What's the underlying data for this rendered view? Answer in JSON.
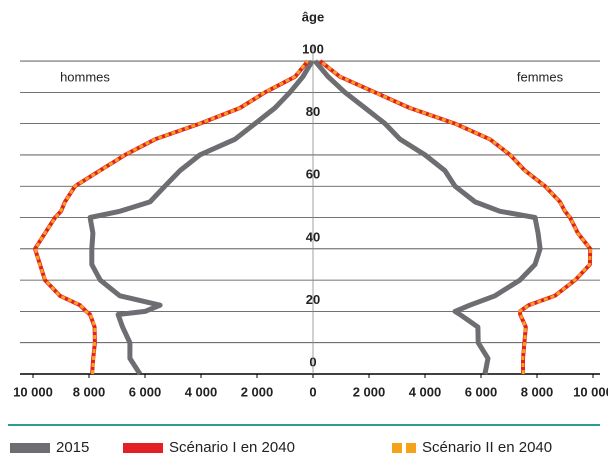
{
  "chart_data": {
    "type": "pyramid",
    "y_label": "âge",
    "annotations": [
      "hommes",
      "femmes"
    ],
    "ages": [
      0,
      5,
      10,
      15,
      19,
      20,
      22,
      25,
      30,
      35,
      40,
      45,
      50,
      52,
      55,
      60,
      65,
      70,
      75,
      80,
      85,
      90,
      95,
      100
    ],
    "series": [
      {
        "name": "2015",
        "color": "#6d6e71",
        "dash": false,
        "men": [
          6180,
          6540,
          6540,
          6800,
          6960,
          6000,
          5460,
          6900,
          7600,
          7900,
          7900,
          7860,
          7960,
          6900,
          5820,
          5290,
          4750,
          4040,
          2790,
          2070,
          1360,
          820,
          360,
          30
        ],
        "women": [
          6140,
          6250,
          5900,
          5890,
          5250,
          5070,
          5600,
          6500,
          7390,
          7930,
          8110,
          8040,
          7930,
          6680,
          5790,
          5070,
          4710,
          4000,
          3110,
          2570,
          1860,
          1140,
          540,
          70
        ]
      },
      {
        "name": "Scénario I en 2040",
        "color": "#e31e24",
        "dash": false,
        "men": [
          7890,
          7850,
          7790,
          7800,
          7960,
          8100,
          8320,
          9040,
          9570,
          9750,
          9930,
          9570,
          9210,
          9000,
          8860,
          8500,
          7610,
          6710,
          5640,
          4040,
          2610,
          1710,
          640,
          180
        ],
        "women": [
          7500,
          7500,
          7550,
          7600,
          7400,
          7390,
          7700,
          8640,
          9360,
          9890,
          9900,
          9460,
          9180,
          9000,
          8820,
          8290,
          7570,
          7040,
          6320,
          5070,
          3460,
          2210,
          960,
          250
        ]
      },
      {
        "name": "Scénario II en 2040",
        "color": "#f7a21b",
        "dash": true,
        "men": [
          7880,
          7840,
          7800,
          7790,
          7950,
          8120,
          8300,
          9050,
          9560,
          9760,
          9920,
          9580,
          9200,
          9010,
          8850,
          8510,
          7600,
          6720,
          5650,
          4050,
          2600,
          1720,
          650,
          190
        ],
        "women": [
          7510,
          7490,
          7560,
          7590,
          7410,
          7380,
          7710,
          8650,
          9350,
          9880,
          9910,
          9450,
          9190,
          9010,
          8810,
          8300,
          7560,
          7050,
          6330,
          5060,
          3470,
          2200,
          970,
          260
        ]
      }
    ],
    "xlim": [
      -10000,
      10000
    ],
    "xticks": [
      {
        "value": -10000,
        "label": "10 000"
      },
      {
        "value": -8000,
        "label": "8 000"
      },
      {
        "value": -6000,
        "label": "6 000"
      },
      {
        "value": -4000,
        "label": "4 000"
      },
      {
        "value": -2000,
        "label": "2 000"
      },
      0,
      {
        "value": 2000,
        "label": "2 000"
      },
      {
        "value": 4000,
        "label": "4 000"
      },
      {
        "value": 6000,
        "label": "6 000"
      },
      {
        "value": 8000,
        "label": "8 000"
      },
      {
        "value": 10000,
        "label": "10 000"
      }
    ],
    "ylim": [
      0,
      105
    ],
    "yticks": [
      0,
      20,
      40,
      60,
      80,
      100
    ],
    "grid": true
  }
}
